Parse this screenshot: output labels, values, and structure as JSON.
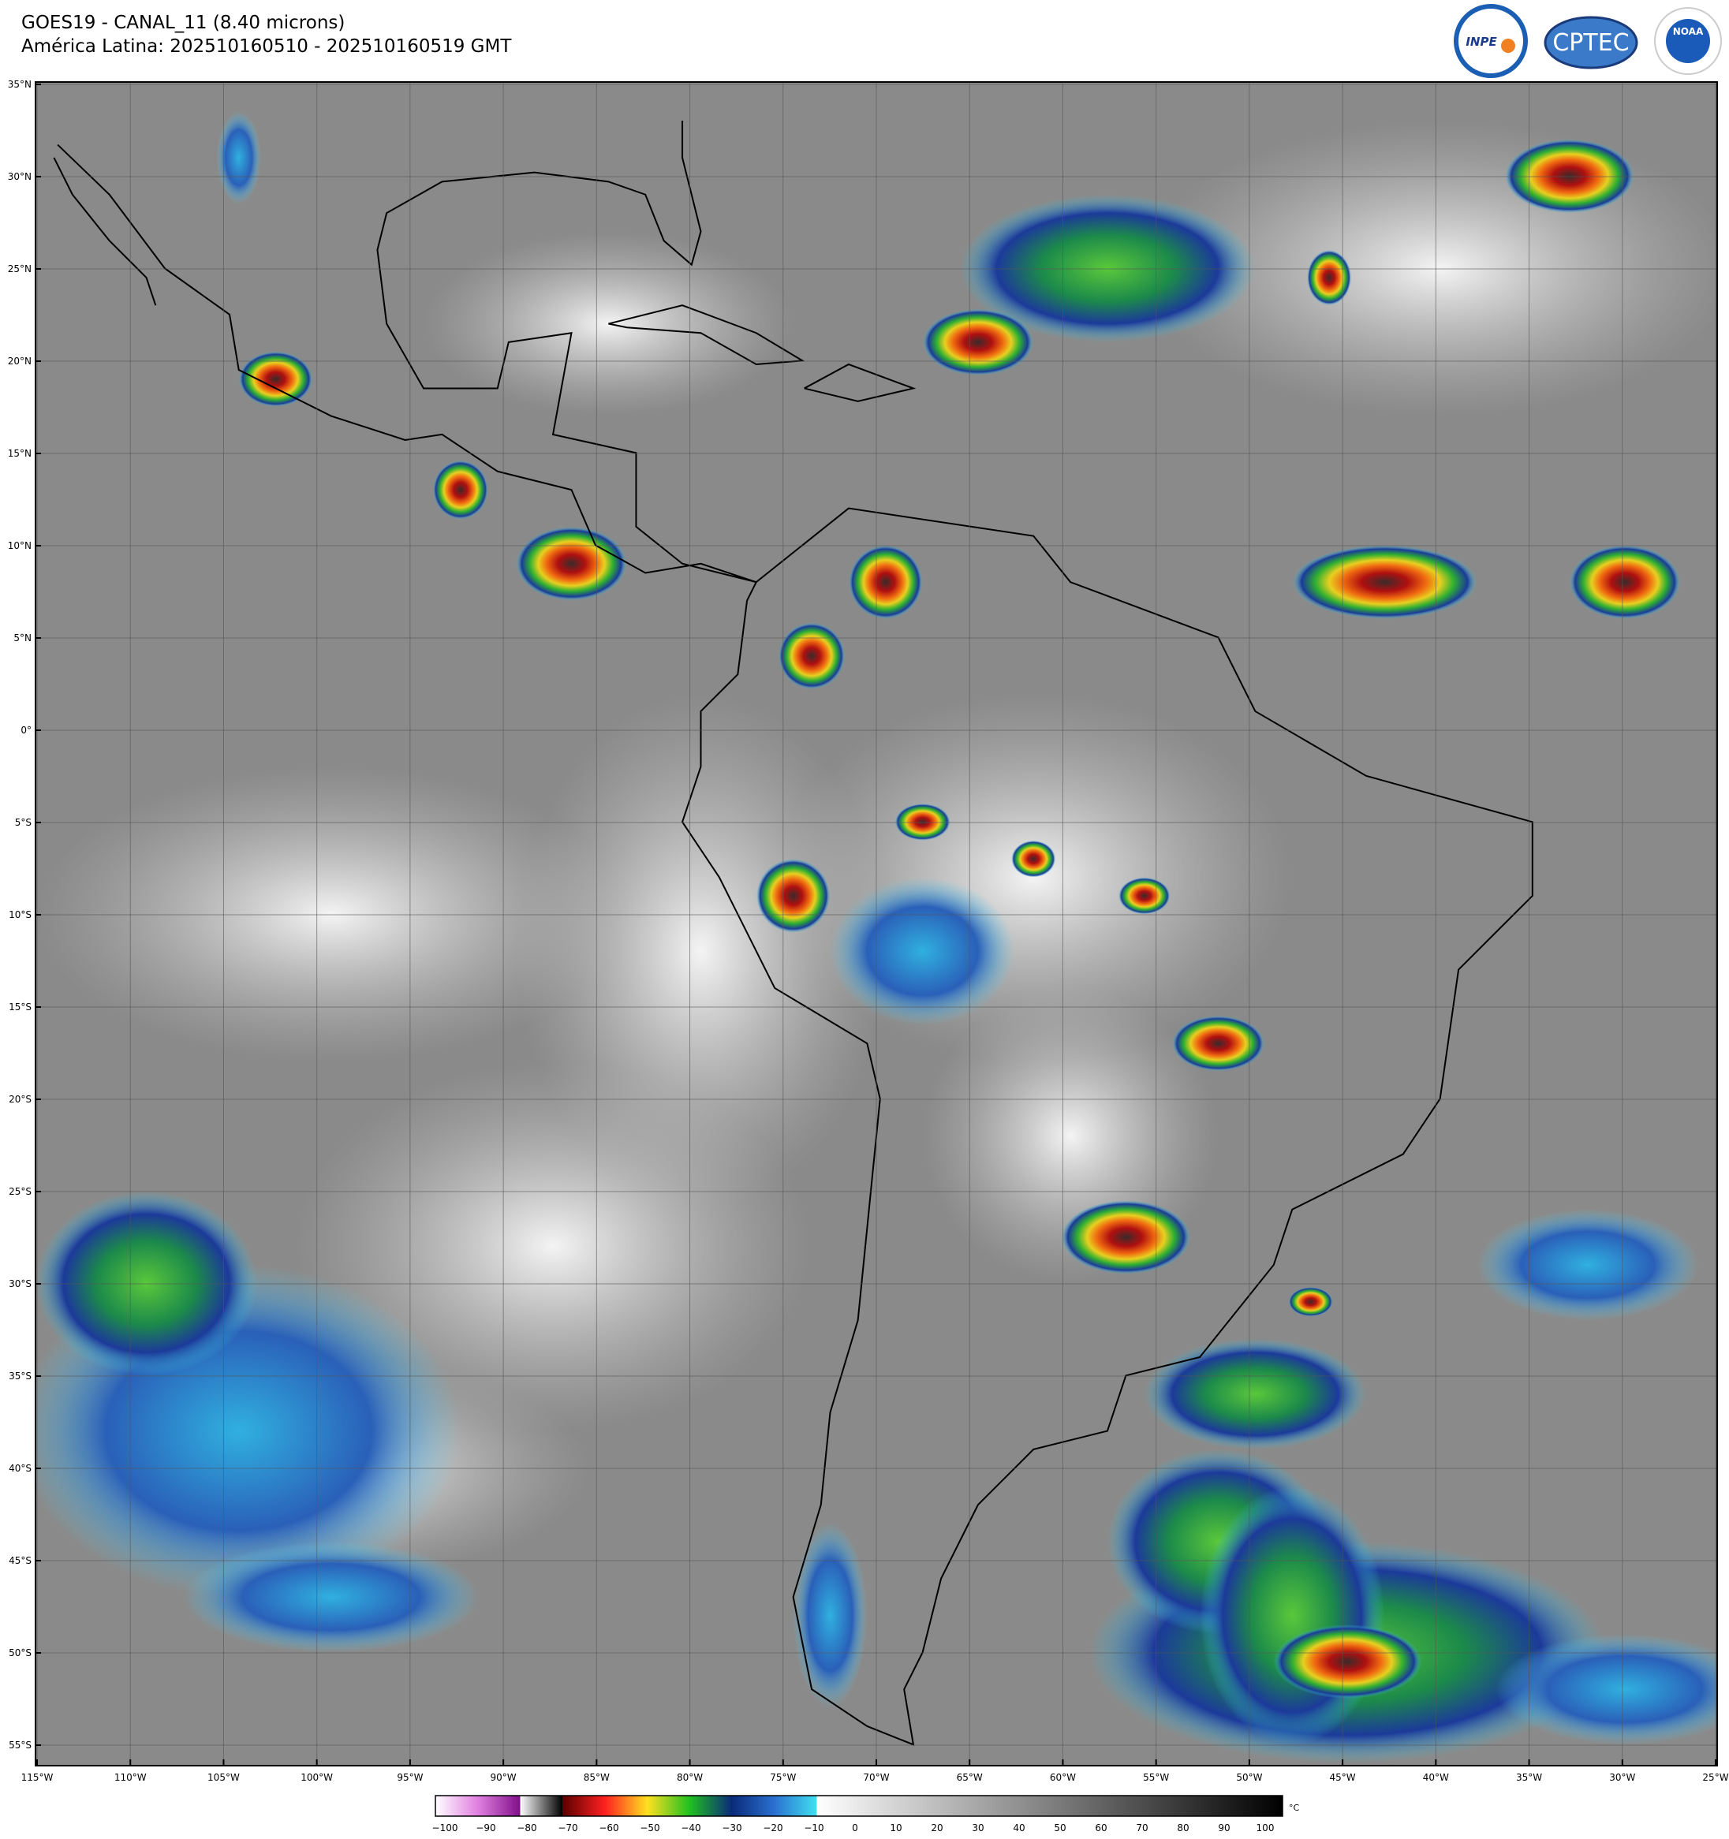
{
  "header": {
    "title": "GOES19 - CANAL_11 (8.40 microns)",
    "subtitle": "América Latina: 202510160510 - 202510160519 GMT"
  },
  "logos": {
    "inpe": "INPE",
    "cptec": "CPTEC",
    "noaa": "NOAA"
  },
  "map": {
    "lat_labels": [
      "35°N",
      "30°N",
      "25°N",
      "20°N",
      "15°N",
      "10°N",
      "5°N",
      "0°",
      "5°S",
      "10°S",
      "15°S",
      "20°S",
      "25°S",
      "30°S",
      "35°S",
      "40°S",
      "45°S",
      "50°S",
      "55°S"
    ],
    "lon_labels": [
      "115°W",
      "110°W",
      "105°W",
      "100°W",
      "95°W",
      "90°W",
      "85°W",
      "80°W",
      "75°W",
      "70°W",
      "65°W",
      "60°W",
      "55°W",
      "50°W",
      "45°W",
      "40°W",
      "35°W",
      "30°W",
      "25°W"
    ]
  },
  "colorbar": {
    "unit": "°C",
    "ticks": [
      "−100",
      "−90",
      "−80",
      "−70",
      "−60",
      "−50",
      "−40",
      "−30",
      "−20",
      "−10",
      "0",
      "10",
      "20",
      "30",
      "40",
      "50",
      "60",
      "70",
      "80",
      "90",
      "100"
    ]
  }
}
